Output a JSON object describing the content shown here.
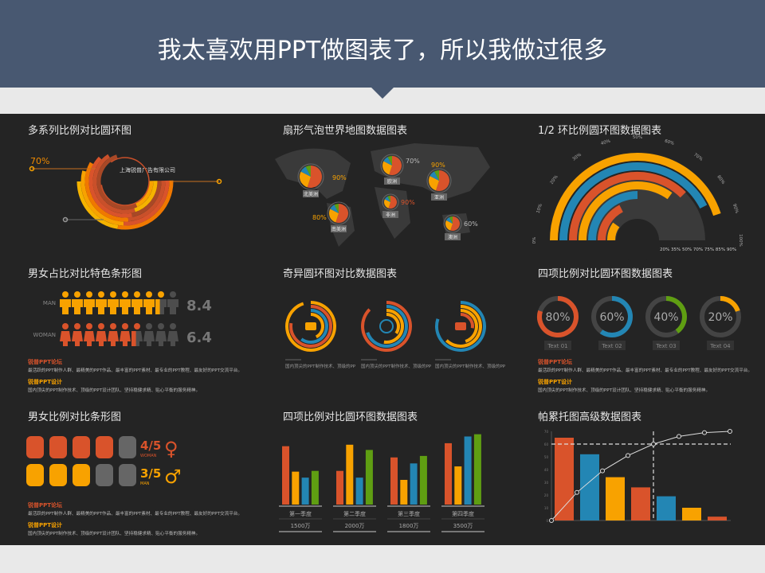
{
  "header": {
    "title": "我太喜欢用PPT做图表了，所以我做过很多"
  },
  "colors": {
    "red": "#d9532b",
    "orange": "#f8a200",
    "blue": "#2386b4",
    "green": "#5f9e12",
    "gray": "#555555",
    "panel": "#242424",
    "header": "#485871"
  },
  "body_text": {
    "h1": "锐普PPT论坛",
    "p1": "最活跃的PPT制作人群、最精美的PPT作品、最丰富的PPT素材、最专业的PPT教程、最友好的PPT交流平台。",
    "h2": "锐普PPT设计",
    "p2": "国内顶尖的PPT制作技术、顶级的PPT设计团队、坚持稳健求精、贴心平衡的服务精神。"
  },
  "chart_data": [
    {
      "type": "ring",
      "title": "多系列比例对比圆环图",
      "label": "70%",
      "company": "上海锐普广告有限公司"
    },
    {
      "type": "pie-map",
      "title": "扇形气泡世界地图数据图表",
      "regions": [
        {
          "name": "北美洲",
          "value": "90%"
        },
        {
          "name": "欧洲",
          "value": "70%"
        },
        {
          "name": "亚洲",
          "value": "90%"
        },
        {
          "name": "非洲",
          "value": "90%"
        },
        {
          "name": "南美洲",
          "value": "80%"
        },
        {
          "name": "澳洲",
          "value": "60%"
        }
      ]
    },
    {
      "type": "half-ring",
      "title": "1/2 环比例圆环图数据图表",
      "values": [
        20,
        35,
        50,
        70,
        75,
        85,
        90
      ],
      "value_labels": [
        "20%",
        "35%",
        "50%",
        "70%",
        "75%",
        "85%",
        "90%"
      ],
      "ticks": [
        "0%",
        "10%",
        "20%",
        "30%",
        "40%",
        "50%",
        "60%",
        "70%",
        "80%",
        "90%",
        "100%"
      ]
    },
    {
      "type": "pictogram",
      "title": "男女占比对比特色条形图",
      "rows": [
        {
          "name": "MAN",
          "value": 8.4,
          "label": "8.4"
        },
        {
          "name": "WOMAN",
          "value": 6.4,
          "label": "6.4"
        }
      ],
      "max": 10
    },
    {
      "type": "ring",
      "title": "奇异圆环图对比数据图表",
      "icons": [
        "hand-pointer-icon",
        "clock-icon",
        "puzzle-icon"
      ]
    },
    {
      "type": "donut",
      "title": "四项比例对比圆环图数据图表",
      "items": [
        {
          "value": 80,
          "label": "80%",
          "name": "Text 01"
        },
        {
          "value": 60,
          "label": "60%",
          "name": "Text 02"
        },
        {
          "value": 40,
          "label": "40%",
          "name": "Text 03"
        },
        {
          "value": 20,
          "label": "20%",
          "name": "Text 04"
        }
      ]
    },
    {
      "type": "pictogram",
      "title": "男女比例对比条形图",
      "rows": [
        {
          "name": "WOMAN",
          "value": 4,
          "label": "4/5"
        },
        {
          "name": "MAN",
          "value": 3,
          "label": "3/5"
        }
      ],
      "max": 5
    },
    {
      "type": "bar",
      "title": "四项比例对比圆环图数据图表",
      "categories": [
        "第一季度",
        "第二季度",
        "第三季度",
        "第四季度"
      ],
      "totals": [
        "1500万",
        "2000万",
        "1800万",
        "3500万"
      ],
      "series": [
        {
          "values": [
            78,
            45,
            63,
            82
          ]
        },
        {
          "values": [
            44,
            80,
            33,
            51
          ]
        },
        {
          "values": [
            36,
            36,
            55,
            91
          ]
        },
        {
          "values": [
            45,
            73,
            65,
            94
          ]
        }
      ]
    },
    {
      "type": "pareto",
      "title": "帕累托图高级数据图表",
      "ylim": [
        0,
        70
      ],
      "yticks": [
        0,
        10,
        20,
        30,
        40,
        50,
        60,
        70
      ],
      "bars": [
        65,
        52,
        34,
        26,
        19,
        10,
        3
      ],
      "cumulative": [
        0,
        22,
        39,
        51,
        60,
        66,
        69,
        70
      ],
      "threshold": 60
    }
  ]
}
